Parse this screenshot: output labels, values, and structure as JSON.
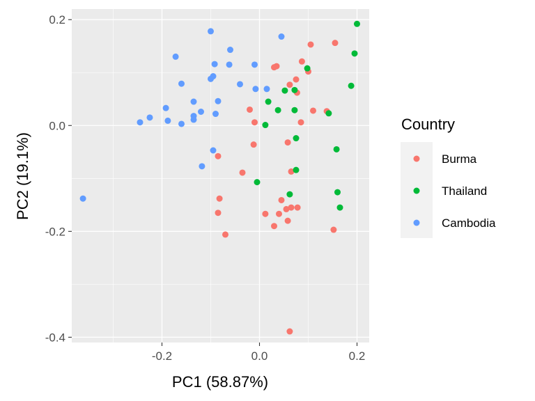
{
  "chart_data": {
    "type": "scatter",
    "xlabel": "PC1 (58.87%)",
    "ylabel": "PC2 (19.1%)",
    "xlim": [
      -0.385,
      0.225
    ],
    "ylim": [
      -0.41,
      0.22
    ],
    "x_ticks": [
      -0.2,
      0.0,
      0.2
    ],
    "x_tick_labels": [
      "-0.2",
      "0.0",
      "0.2"
    ],
    "y_ticks": [
      -0.4,
      -0.2,
      0.0,
      0.2
    ],
    "y_tick_labels": [
      "-0.4",
      "-0.2",
      "0.0",
      "0.2"
    ],
    "grid": true,
    "legend": {
      "title": "Country",
      "position": "right"
    },
    "series": [
      {
        "name": "Burma",
        "color": "#F8766D",
        "points": [
          [
            0.105,
            0.153
          ],
          [
            0.155,
            0.156
          ],
          [
            0.087,
            0.121
          ],
          [
            0.075,
            0.087
          ],
          [
            0.062,
            0.077
          ],
          [
            0.077,
            0.062
          ],
          [
            0.1,
            0.102
          ],
          [
            0.03,
            0.11
          ],
          [
            0.035,
            0.112
          ],
          [
            0.11,
            0.028
          ],
          [
            0.138,
            0.027
          ],
          [
            -0.02,
            0.03
          ],
          [
            -0.01,
            0.006
          ],
          [
            0.085,
            0.006
          ],
          [
            -0.012,
            -0.036
          ],
          [
            0.058,
            -0.032
          ],
          [
            -0.085,
            -0.058
          ],
          [
            -0.035,
            -0.089
          ],
          [
            0.065,
            -0.087
          ],
          [
            0.045,
            -0.141
          ],
          [
            -0.082,
            -0.138
          ],
          [
            0.055,
            -0.158
          ],
          [
            0.065,
            -0.155
          ],
          [
            0.078,
            -0.155
          ],
          [
            0.012,
            -0.167
          ],
          [
            0.04,
            -0.167
          ],
          [
            -0.085,
            -0.165
          ],
          [
            0.058,
            -0.18
          ],
          [
            0.03,
            -0.19
          ],
          [
            -0.07,
            -0.206
          ],
          [
            0.152,
            -0.197
          ],
          [
            0.062,
            -0.389
          ]
        ]
      },
      {
        "name": "Thailand",
        "color": "#00BA38",
        "points": [
          [
            0.2,
            0.192
          ],
          [
            0.195,
            0.136
          ],
          [
            0.098,
            0.108
          ],
          [
            0.188,
            0.075
          ],
          [
            0.052,
            0.066
          ],
          [
            0.072,
            0.067
          ],
          [
            0.018,
            0.045
          ],
          [
            0.038,
            0.029
          ],
          [
            0.072,
            0.029
          ],
          [
            0.142,
            0.023
          ],
          [
            0.012,
            0.001
          ],
          [
            0.075,
            -0.024
          ],
          [
            0.158,
            -0.045
          ],
          [
            0.075,
            -0.084
          ],
          [
            -0.005,
            -0.107
          ],
          [
            0.062,
            -0.13
          ],
          [
            0.16,
            -0.126
          ],
          [
            0.165,
            -0.155
          ]
        ]
      },
      {
        "name": "Cambodia",
        "color": "#619CFF",
        "points": [
          [
            -0.1,
            0.178
          ],
          [
            0.045,
            0.168
          ],
          [
            -0.06,
            0.143
          ],
          [
            -0.172,
            0.13
          ],
          [
            -0.092,
            0.116
          ],
          [
            -0.062,
            0.115
          ],
          [
            -0.01,
            0.115
          ],
          [
            -0.095,
            0.093
          ],
          [
            -0.1,
            0.088
          ],
          [
            -0.16,
            0.079
          ],
          [
            -0.04,
            0.078
          ],
          [
            -0.008,
            0.069
          ],
          [
            0.015,
            0.069
          ],
          [
            -0.135,
            0.045
          ],
          [
            -0.085,
            0.046
          ],
          [
            -0.192,
            0.033
          ],
          [
            -0.12,
            0.026
          ],
          [
            -0.09,
            0.022
          ],
          [
            -0.135,
            0.018
          ],
          [
            -0.225,
            0.015
          ],
          [
            -0.135,
            0.011
          ],
          [
            -0.188,
            0.009
          ],
          [
            -0.245,
            0.006
          ],
          [
            -0.16,
            0.003
          ],
          [
            -0.095,
            -0.047
          ],
          [
            -0.118,
            -0.077
          ],
          [
            -0.362,
            -0.138
          ]
        ]
      }
    ]
  }
}
